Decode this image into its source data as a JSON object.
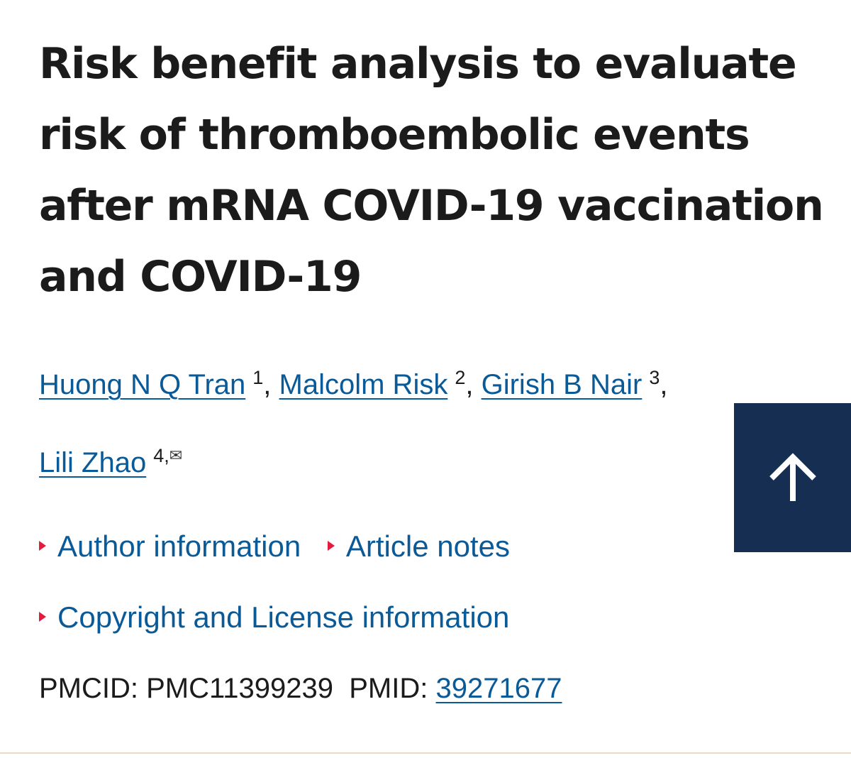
{
  "article": {
    "title": "Risk benefit analysis to evaluate risk of thromboembolic events after mRNA COVID-19 vaccination and COVID-19",
    "authors": [
      {
        "name": "Huong N Q Tran",
        "affil": "1",
        "sep": ","
      },
      {
        "name": "Malcolm Risk",
        "affil": "2",
        "sep": ","
      },
      {
        "name": "Girish B Nair",
        "affil": "3",
        "sep": ","
      },
      {
        "name": "Lili Zhao",
        "affil": "4,",
        "sep": ""
      }
    ],
    "corresponding_icon": "envelope-icon"
  },
  "accordions": {
    "author_info": "Author information",
    "article_notes": "Article notes",
    "copyright": "Copyright and License information"
  },
  "identifiers": {
    "pmcid_label": "PMCID:",
    "pmcid": "PMC11399239",
    "pmid_label": "PMID:",
    "pmid": "39271677"
  },
  "back_to_top": {
    "icon": "arrow-up-icon"
  },
  "colors": {
    "link": "#0b5a98",
    "accent_marker": "#e31c3d",
    "back_to_top_bg": "#162e51"
  }
}
